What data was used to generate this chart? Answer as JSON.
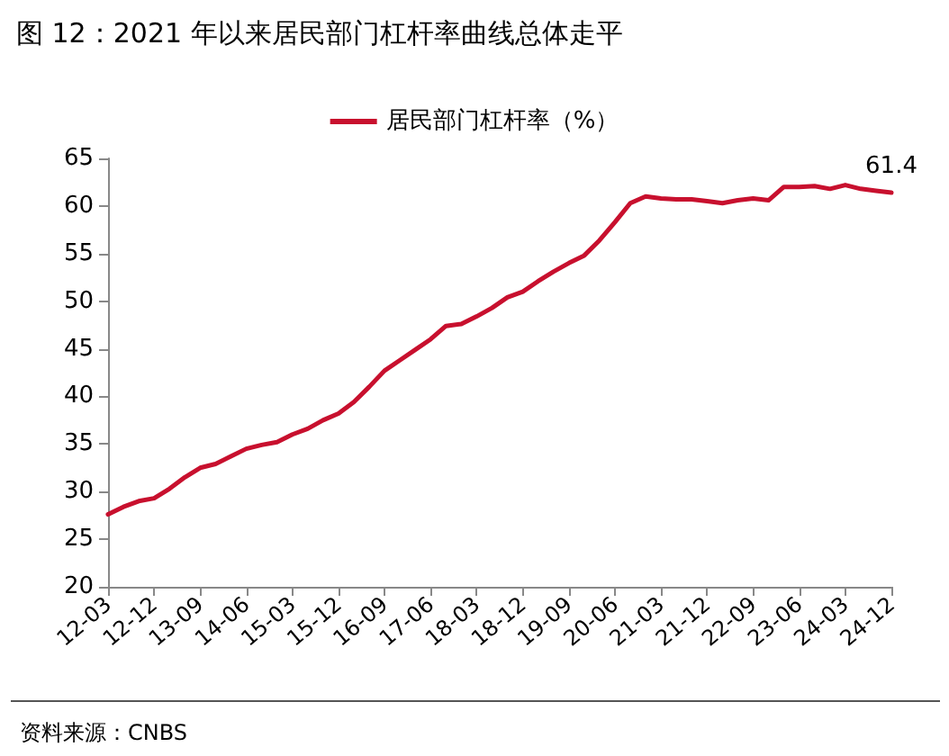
{
  "chart_data": {
    "type": "line",
    "title": "图 12：2021 年以来居民部门杠杆率曲线总体走平",
    "categories": [
      "12-03",
      null,
      null,
      "12-12",
      null,
      null,
      "13-09",
      null,
      null,
      "14-06",
      null,
      null,
      "15-03",
      null,
      null,
      "15-12",
      null,
      null,
      "16-09",
      null,
      null,
      "17-06",
      null,
      null,
      "18-03",
      null,
      null,
      "18-12",
      null,
      null,
      "19-09",
      null,
      null,
      "20-06",
      null,
      null,
      "21-03",
      null,
      null,
      "21-12",
      null,
      null,
      "22-09",
      null,
      null,
      "23-06",
      null,
      null,
      "24-03",
      null,
      null,
      "24-12"
    ],
    "series": [
      {
        "name": "居民部门杠杆率（%）",
        "color": "#c8102e",
        "values": [
          27.6,
          28.4,
          29.0,
          29.3,
          30.3,
          31.5,
          32.5,
          32.9,
          33.7,
          34.5,
          34.9,
          35.2,
          36.0,
          36.6,
          37.5,
          38.2,
          39.4,
          41.0,
          42.7,
          43.8,
          44.9,
          46.0,
          47.4,
          47.6,
          48.4,
          49.3,
          50.4,
          51.0,
          52.1,
          53.1,
          54.0,
          54.8,
          56.4,
          58.3,
          60.3,
          61.0,
          60.8,
          60.7,
          60.7,
          60.5,
          60.3,
          60.6,
          60.8,
          60.6,
          62.0,
          62.0,
          62.1,
          61.8,
          62.2,
          61.8,
          61.6,
          61.4
        ],
        "value_labels": [
          null,
          null,
          null,
          null,
          null,
          null,
          null,
          null,
          null,
          null,
          null,
          null,
          null,
          null,
          null,
          null,
          null,
          null,
          null,
          null,
          null,
          null,
          null,
          null,
          null,
          null,
          null,
          null,
          null,
          null,
          null,
          null,
          null,
          null,
          null,
          null,
          null,
          null,
          null,
          null,
          null,
          null,
          null,
          null,
          null,
          null,
          null,
          null,
          null,
          null,
          null,
          "61.4"
        ]
      }
    ],
    "ylim": [
      20,
      65
    ],
    "yticks": [
      20,
      25,
      30,
      35,
      40,
      45,
      50,
      55,
      60,
      65
    ],
    "legend": "top",
    "grid": false,
    "marker": "none",
    "line_style": "solid",
    "annotations": [
      "资料来源：CNBS"
    ]
  }
}
